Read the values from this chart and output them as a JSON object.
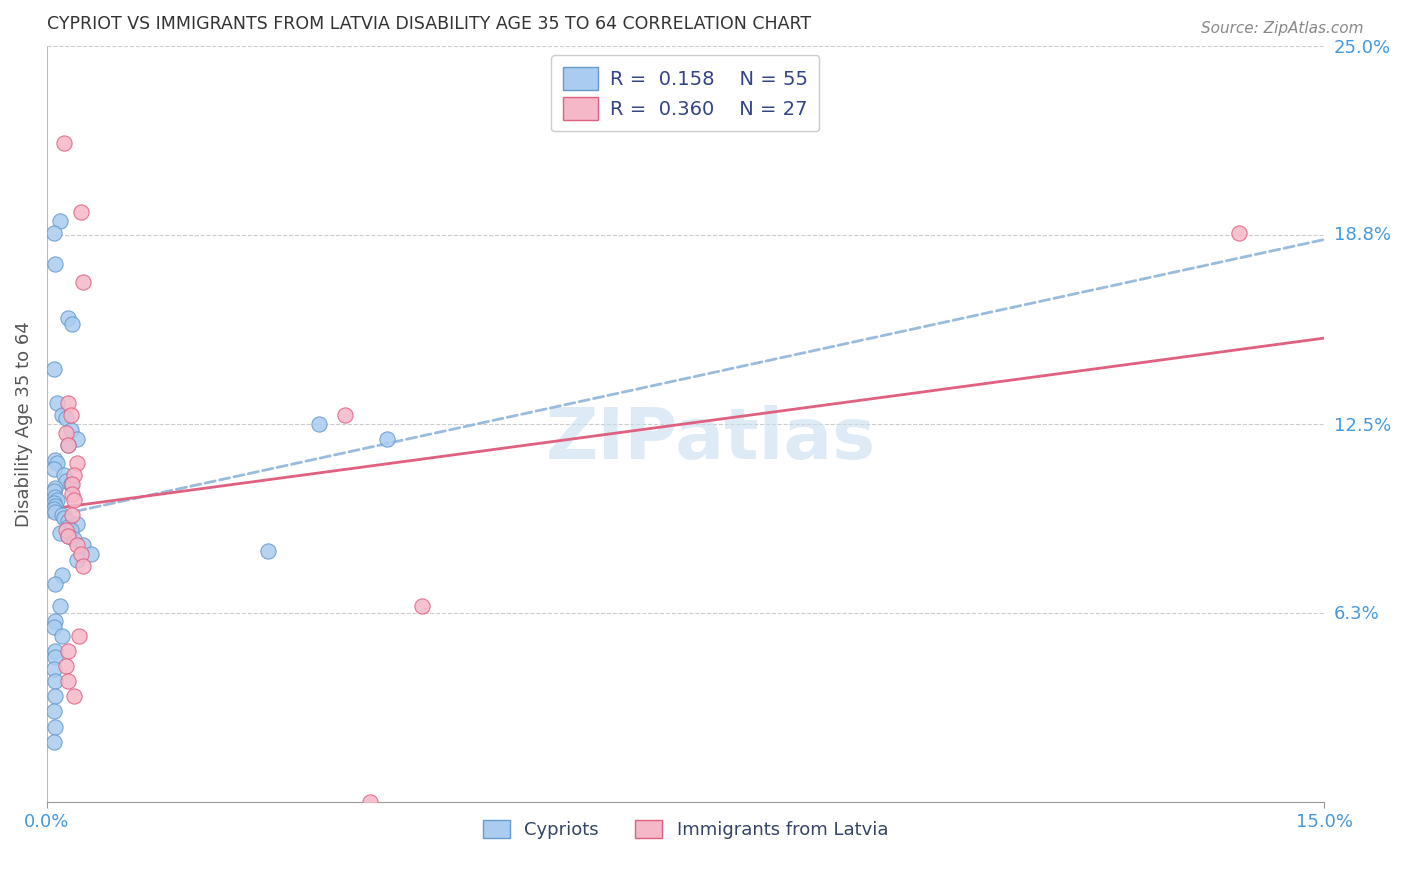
{
  "title": "CYPRIOT VS IMMIGRANTS FROM LATVIA DISABILITY AGE 35 TO 64 CORRELATION CHART",
  "source": "Source: ZipAtlas.com",
  "ylabel": "Disability Age 35 to 64",
  "x_min": 0.0,
  "x_max": 0.15,
  "y_min": 0.0,
  "y_max": 0.25,
  "x_tick_labels": [
    "0.0%",
    "15.0%"
  ],
  "x_tick_positions": [
    0.0,
    0.15
  ],
  "y_tick_labels_right": [
    "25.0%",
    "18.8%",
    "12.5%",
    "6.3%"
  ],
  "y_tick_positions_right": [
    0.25,
    0.188,
    0.125,
    0.063
  ],
  "legend_r1": "R =  0.158",
  "legend_n1": "N = 55",
  "legend_r2": "R =  0.360",
  "legend_n2": "N = 27",
  "color_cypriot_fill": "#aaccf0",
  "color_cypriot_edge": "#6699cc",
  "color_latvia_fill": "#f5b8c8",
  "color_latvia_edge": "#e06080",
  "color_line_cypriot": "#99bbdd",
  "color_line_latvia": "#e06080",
  "color_label_blue": "#4499dd",
  "watermark_color": "#c8dff0",
  "cypriot_x": [
    0.0015,
    0.0008,
    0.001,
    0.0025,
    0.003,
    0.0008,
    0.0012,
    0.0018,
    0.0022,
    0.0028,
    0.0035,
    0.0025,
    0.001,
    0.0012,
    0.0008,
    0.002,
    0.0022,
    0.0028,
    0.001,
    0.0008,
    0.001,
    0.0012,
    0.0008,
    0.001,
    0.0008,
    0.001,
    0.0018,
    0.002,
    0.0025,
    0.0035,
    0.0025,
    0.0028,
    0.0015,
    0.0025,
    0.0032,
    0.0042,
    0.0052,
    0.0035,
    0.0018,
    0.001,
    0.0015,
    0.001,
    0.0008,
    0.0018,
    0.001,
    0.001,
    0.0008,
    0.001,
    0.001,
    0.0008,
    0.001,
    0.0008,
    0.04,
    0.032,
    0.026
  ],
  "cypriot_y": [
    0.192,
    0.188,
    0.178,
    0.16,
    0.158,
    0.143,
    0.132,
    0.128,
    0.127,
    0.123,
    0.12,
    0.118,
    0.113,
    0.112,
    0.11,
    0.108,
    0.106,
    0.105,
    0.104,
    0.103,
    0.101,
    0.1,
    0.099,
    0.098,
    0.097,
    0.096,
    0.095,
    0.094,
    0.093,
    0.092,
    0.091,
    0.09,
    0.089,
    0.088,
    0.087,
    0.085,
    0.082,
    0.08,
    0.075,
    0.072,
    0.065,
    0.06,
    0.058,
    0.055,
    0.05,
    0.048,
    0.044,
    0.04,
    0.035,
    0.03,
    0.025,
    0.02,
    0.12,
    0.125,
    0.083
  ],
  "latvia_x": [
    0.002,
    0.004,
    0.0042,
    0.0025,
    0.0028,
    0.0022,
    0.0025,
    0.0035,
    0.0032,
    0.003,
    0.003,
    0.0032,
    0.003,
    0.0022,
    0.0025,
    0.0035,
    0.004,
    0.0042,
    0.0038,
    0.0025,
    0.0022,
    0.0025,
    0.0032,
    0.035,
    0.038,
    0.044,
    0.14
  ],
  "latvia_y": [
    0.218,
    0.195,
    0.172,
    0.132,
    0.128,
    0.122,
    0.118,
    0.112,
    0.108,
    0.105,
    0.102,
    0.1,
    0.095,
    0.09,
    0.088,
    0.085,
    0.082,
    0.078,
    0.055,
    0.05,
    0.045,
    0.04,
    0.035,
    0.128,
    0.0,
    0.065,
    0.188
  ]
}
